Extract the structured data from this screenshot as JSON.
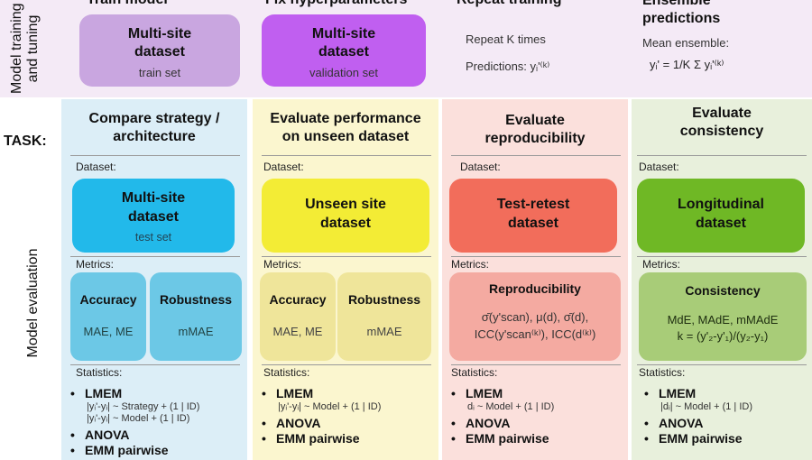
{
  "side_labels": {
    "training": "Model training\nand tuning",
    "task": "TASK:",
    "evaluation": "Model evaluation"
  },
  "top": {
    "headers": [
      "Train model",
      "Fix hyperparameters",
      "Repeat training",
      "Ensemble\npredictions"
    ],
    "train_box": {
      "title": "Multi-site\ndataset",
      "sub": "train set"
    },
    "val_box": {
      "title": "Multi-site\ndataset",
      "sub": "validation set"
    },
    "repeat_k": "Repeat K times",
    "predictions": "Predictions: yᵢ'⁽ᵏ⁾",
    "mean_ensemble": "Mean ensemble:",
    "ensemble_formula": "yᵢ' = 1/K Σ yᵢ'⁽ᵏ⁾"
  },
  "common": {
    "dataset_label": "Dataset:",
    "metrics_label": "Metrics:",
    "statistics_label": "Statistics:"
  },
  "columns": [
    {
      "title": "Compare strategy /\narchitecture",
      "dataset": "Multi-site\ndataset",
      "dataset_sub": "test set",
      "metrics": [
        {
          "name": "Accuracy",
          "value": "MAE, ME"
        },
        {
          "name": "Robustness",
          "value": "mMAE"
        }
      ],
      "stats": [
        {
          "item": "LMEM",
          "formulas": [
            "|yᵢ'-yᵢ| ~ Strategy + (1 | ID)",
            "|yᵢ'-yᵢ| ~ Model + (1 | ID)"
          ]
        },
        {
          "item": "ANOVA",
          "formulas": []
        },
        {
          "item": "EMM pairwise",
          "formulas": []
        }
      ]
    },
    {
      "title": "Evaluate performance\non unseen dataset",
      "dataset": "Unseen site\ndataset",
      "dataset_sub": "",
      "metrics": [
        {
          "name": "Accuracy",
          "value": "MAE, ME"
        },
        {
          "name": "Robustness",
          "value": "mMAE"
        }
      ],
      "stats": [
        {
          "item": "LMEM",
          "formulas": [
            "|yᵢ'-yᵢ| ~ Model + (1 | ID)"
          ]
        },
        {
          "item": "ANOVA",
          "formulas": []
        },
        {
          "item": "EMM pairwise",
          "formulas": []
        }
      ]
    },
    {
      "title": "Evaluate\nreproducibility",
      "dataset": "Test-retest\ndataset",
      "dataset_sub": "",
      "metrics": [
        {
          "name": "Reproducibility",
          "value": "σ̄(y'scan), μ(d), σ̄(d),\nICC(y'scan⁽ᵏ⁾), ICC(d⁽ᵏ⁾)"
        }
      ],
      "stats": [
        {
          "item": "LMEM",
          "formulas": [
            "dᵢ ~ Model + (1 | ID)"
          ]
        },
        {
          "item": "ANOVA",
          "formulas": []
        },
        {
          "item": "EMM pairwise",
          "formulas": []
        }
      ]
    },
    {
      "title": "Evaluate\nconsistency",
      "dataset": "Longitudinal\ndataset",
      "dataset_sub": "",
      "metrics": [
        {
          "name": "Consistency",
          "value": "MdE, MAdE, mMAdE\nk = (y'₂-y'₁)/(y₂-y₁)"
        }
      ],
      "stats": [
        {
          "item": "LMEM",
          "formulas": [
            "|dᵢ| ~ Model + (1 | ID)"
          ]
        },
        {
          "item": "ANOVA",
          "formulas": []
        },
        {
          "item": "EMM pairwise",
          "formulas": []
        }
      ]
    }
  ],
  "colors": {
    "top_band": "#f4eaf6",
    "train_box": "#c9a6e0",
    "val_box": "#c05ff0",
    "col1_bg": "#dceef7",
    "col1_dataset": "#22b9ea",
    "col1_metric": "#6cc8e6",
    "col2_bg": "#fbf6cf",
    "col2_dataset": "#f3ec35",
    "col2_metric": "#efe59a",
    "col3_bg": "#fbe0dc",
    "col3_dataset": "#f26d5b",
    "col3_metric": "#f4aaa1",
    "col4_bg": "#e8f0dc",
    "col4_dataset": "#6fb825",
    "col4_metric": "#a8cc78"
  }
}
